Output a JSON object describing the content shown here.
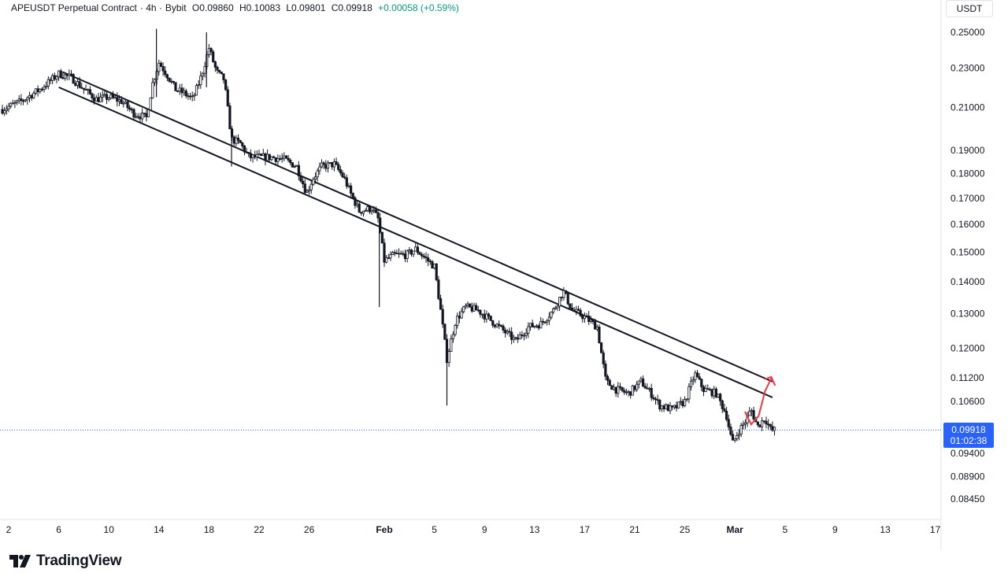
{
  "header": {
    "symbol": "APEUSDT Perpetual Contract",
    "interval": "· 4h ·",
    "exchange": "Bybit",
    "open": "O0.09860",
    "high": "H0.10083",
    "low": "L0.09801",
    "close": "C0.09918",
    "change": "+0.00058 (+0.59%)"
  },
  "unit": "USDT",
  "price_tag": {
    "price": "0.09918",
    "countdown": "01:02:38"
  },
  "logo": {
    "text": "TradingView",
    "icon": "tradingview-logo-icon"
  },
  "colors": {
    "candle": "#131722",
    "trendline": "#131722",
    "arrow": "#f23645",
    "price_line": "#2962ff",
    "tag": "#2962ff"
  },
  "chart_data": {
    "type": "candlestick",
    "scale": "log",
    "ylim": [
      0.0835,
      0.255
    ],
    "y_ticks": [
      "0.25000",
      "0.23000",
      "0.21000",
      "0.19000",
      "0.18000",
      "0.17000",
      "0.16000",
      "0.15000",
      "0.14000",
      "0.13000",
      "0.12000",
      "0.11200",
      "0.10600",
      "0.09400",
      "0.08900",
      "0.08450"
    ],
    "x_ticks": [
      {
        "label": "2",
        "day": 2,
        "bold": false
      },
      {
        "label": "6",
        "day": 6,
        "bold": false
      },
      {
        "label": "10",
        "day": 10,
        "bold": false
      },
      {
        "label": "14",
        "day": 14,
        "bold": false
      },
      {
        "label": "18",
        "day": 18,
        "bold": false
      },
      {
        "label": "22",
        "day": 22,
        "bold": false
      },
      {
        "label": "26",
        "day": 26,
        "bold": false
      },
      {
        "label": "Feb",
        "day": 32,
        "bold": true
      },
      {
        "label": "5",
        "day": 36,
        "bold": false
      },
      {
        "label": "9",
        "day": 40,
        "bold": false
      },
      {
        "label": "13",
        "day": 44,
        "bold": false
      },
      {
        "label": "17",
        "day": 48,
        "bold": false
      },
      {
        "label": "21",
        "day": 52,
        "bold": false
      },
      {
        "label": "25",
        "day": 56,
        "bold": false
      },
      {
        "label": "Mar",
        "day": 60,
        "bold": true
      },
      {
        "label": "5",
        "day": 64,
        "bold": false
      },
      {
        "label": "9",
        "day": 68,
        "bold": false
      },
      {
        "label": "13",
        "day": 72,
        "bold": false
      },
      {
        "label": "17",
        "day": 76,
        "bold": false
      }
    ],
    "current_price": 0.09918,
    "price_path": [
      [
        1.5,
        0.209
      ],
      [
        3,
        0.213
      ],
      [
        4.5,
        0.219
      ],
      [
        6,
        0.227
      ],
      [
        7,
        0.225
      ],
      [
        8,
        0.219
      ],
      [
        9,
        0.214
      ],
      [
        10,
        0.215
      ],
      [
        11,
        0.213
      ],
      [
        12,
        0.207
      ],
      [
        13,
        0.205
      ],
      [
        13.5,
        0.222
      ],
      [
        14,
        0.233
      ],
      [
        14.7,
        0.226
      ],
      [
        15.3,
        0.219
      ],
      [
        16,
        0.217
      ],
      [
        16.7,
        0.214
      ],
      [
        17.4,
        0.226
      ],
      [
        18,
        0.241
      ],
      [
        18.6,
        0.228
      ],
      [
        19.2,
        0.224
      ],
      [
        19.8,
        0.195
      ],
      [
        20.5,
        0.193
      ],
      [
        21.2,
        0.187
      ],
      [
        22,
        0.187
      ],
      [
        23,
        0.187
      ],
      [
        24,
        0.186
      ],
      [
        25,
        0.183
      ],
      [
        25.8,
        0.172
      ],
      [
        26.3,
        0.178
      ],
      [
        27,
        0.183
      ],
      [
        28,
        0.184
      ],
      [
        28.8,
        0.178
      ],
      [
        29.3,
        0.172
      ],
      [
        30,
        0.165
      ],
      [
        31,
        0.166
      ],
      [
        31.5,
        0.162
      ],
      [
        32,
        0.147
      ],
      [
        32.8,
        0.149
      ],
      [
        33.8,
        0.149
      ],
      [
        34.5,
        0.151
      ],
      [
        35.5,
        0.147
      ],
      [
        36,
        0.145
      ],
      [
        36.5,
        0.131
      ],
      [
        37,
        0.117
      ],
      [
        37.7,
        0.128
      ],
      [
        38.5,
        0.132
      ],
      [
        39.5,
        0.131
      ],
      [
        40.5,
        0.128
      ],
      [
        41.5,
        0.125
      ],
      [
        42.5,
        0.122
      ],
      [
        43.5,
        0.126
      ],
      [
        44.5,
        0.127
      ],
      [
        45.5,
        0.131
      ],
      [
        46.3,
        0.137
      ],
      [
        47,
        0.131
      ],
      [
        48,
        0.129
      ],
      [
        49,
        0.126
      ],
      [
        49.7,
        0.111
      ],
      [
        50.5,
        0.109
      ],
      [
        51.5,
        0.108
      ],
      [
        52.5,
        0.111
      ],
      [
        53.3,
        0.108
      ],
      [
        54,
        0.105
      ],
      [
        55,
        0.104
      ],
      [
        56,
        0.106
      ],
      [
        56.8,
        0.113
      ],
      [
        57.5,
        0.109
      ],
      [
        58.5,
        0.108
      ],
      [
        59.3,
        0.103
      ],
      [
        59.8,
        0.096
      ],
      [
        60.3,
        0.099
      ],
      [
        60.8,
        0.101
      ],
      [
        61.3,
        0.104
      ],
      [
        61.8,
        0.1
      ],
      [
        62.4,
        0.102
      ],
      [
        62.9,
        0.099
      ],
      [
        63.2,
        0.0992
      ]
    ],
    "wicks": [
      {
        "day": 13.8,
        "low": 0.215,
        "high": 0.252
      },
      {
        "day": 17.8,
        "low": 0.22,
        "high": 0.25
      },
      {
        "day": 19.8,
        "low": 0.183,
        "high": 0.2
      },
      {
        "day": 31.6,
        "low": 0.132,
        "high": 0.16
      },
      {
        "day": 37.0,
        "low": 0.105,
        "high": 0.122
      }
    ],
    "trendlines": [
      {
        "name": "upper",
        "from": [
          6.3,
          0.228
        ],
        "to": [
          63.0,
          0.111
        ]
      },
      {
        "name": "lower",
        "from": [
          6.0,
          0.22
        ],
        "to": [
          63.0,
          0.107
        ]
      }
    ],
    "annotation_arrow": [
      [
        60.8,
        0.1035
      ],
      [
        61.3,
        0.1005
      ],
      [
        61.9,
        0.1025
      ],
      [
        62.4,
        0.1085
      ],
      [
        62.9,
        0.1118
      ]
    ]
  }
}
